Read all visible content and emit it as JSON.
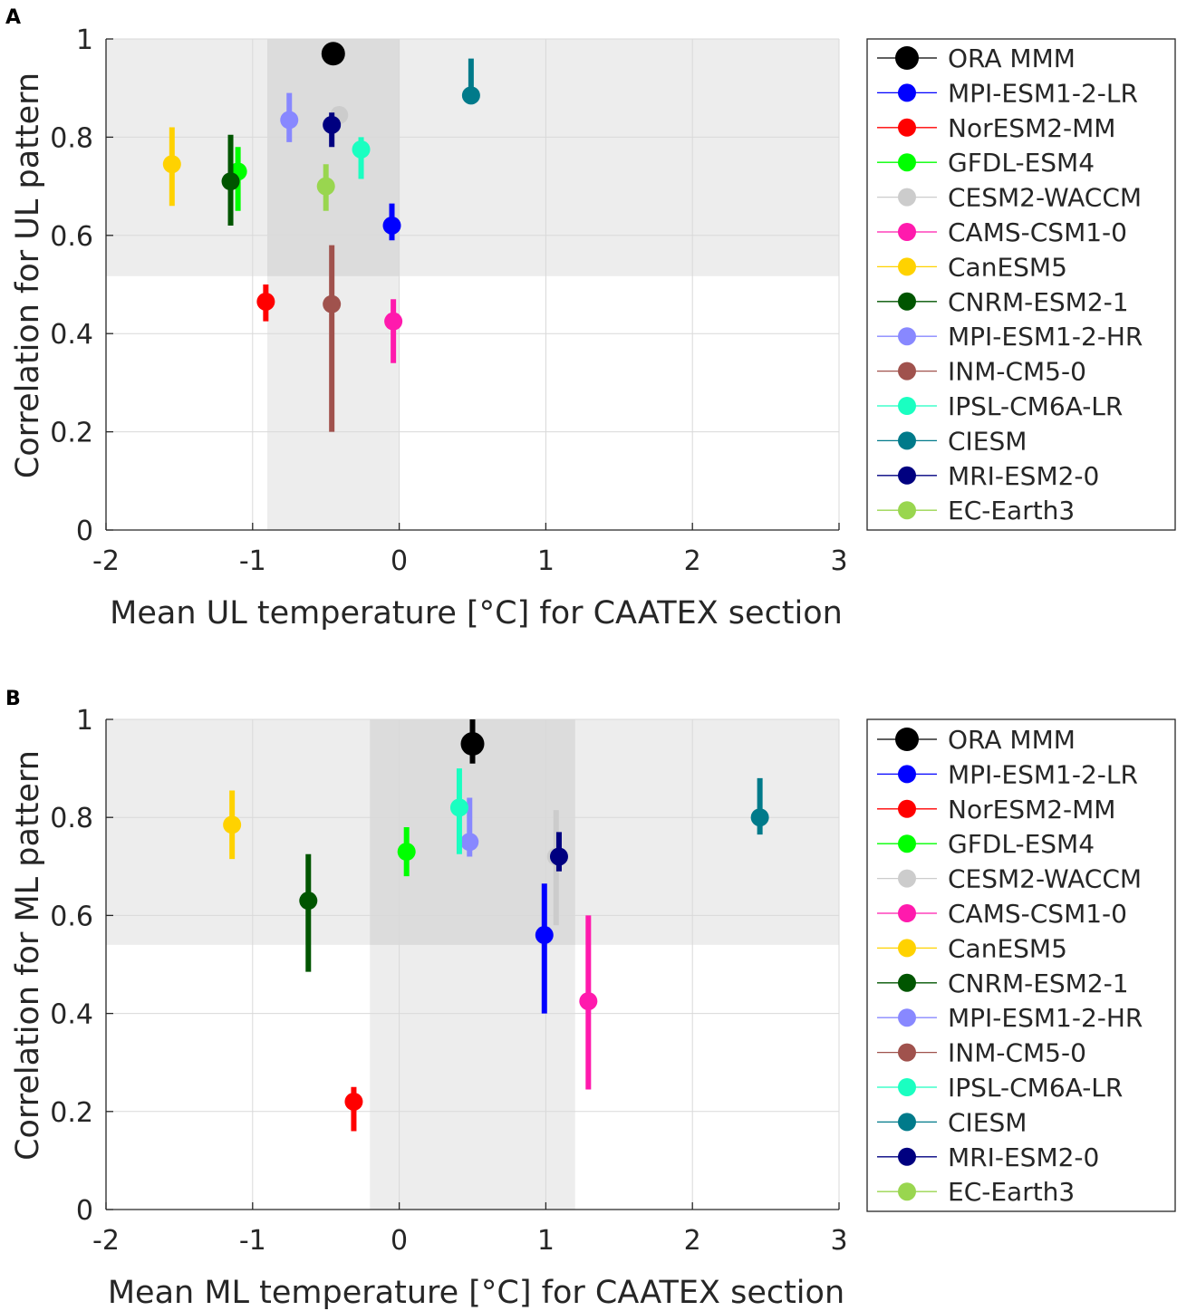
{
  "chart_data": [
    {
      "panel_label": "A",
      "type": "scatter",
      "xlabel": "Mean UL temperature [°C] for CAATEX section",
      "ylabel": "Correlation for UL pattern",
      "xlim": [
        -2,
        3
      ],
      "ylim": [
        0,
        1
      ],
      "xticks": [
        "-2",
        "-1",
        "0",
        "1",
        "2",
        "3"
      ],
      "yticks": [
        "0",
        "0.2",
        "0.4",
        "0.6",
        "0.8",
        "1"
      ],
      "grid": true,
      "legend_position": "outside-right",
      "shaded_regions": [
        {
          "orientation": "horizontal",
          "from": 0.517,
          "to": 1.0
        },
        {
          "orientation": "vertical",
          "from": -0.9,
          "to": 0.0
        }
      ],
      "series": [
        {
          "name": "ORA MMM",
          "color": "#000000",
          "x": -0.45,
          "y": 0.97,
          "err_low": 0.97,
          "err_high": 0.97
        },
        {
          "name": "MPI-ESM1-2-LR",
          "color": "#0000ff",
          "x": -0.05,
          "y": 0.62,
          "err_low": 0.59,
          "err_high": 0.665
        },
        {
          "name": "NorESM2-MM",
          "color": "#ff0000",
          "x": -0.91,
          "y": 0.465,
          "err_low": 0.425,
          "err_high": 0.5
        },
        {
          "name": "GFDL-ESM4",
          "color": "#00ff00",
          "x": -1.1,
          "y": 0.73,
          "err_low": 0.65,
          "err_high": 0.78
        },
        {
          "name": "CESM2-WACCM",
          "color": "#cccccc",
          "x": -0.41,
          "y": 0.845,
          "err_low": 0.845,
          "err_high": 0.845
        },
        {
          "name": "CAMS-CSM1-0",
          "color": "#ff1aad",
          "x": -0.04,
          "y": 0.425,
          "err_low": 0.34,
          "err_high": 0.47
        },
        {
          "name": "CanESM5",
          "color": "#ffd200",
          "x": -1.55,
          "y": 0.745,
          "err_low": 0.66,
          "err_high": 0.82
        },
        {
          "name": "CNRM-ESM2-1",
          "color": "#005500",
          "x": -1.15,
          "y": 0.71,
          "err_low": 0.62,
          "err_high": 0.805
        },
        {
          "name": "MPI-ESM1-2-HR",
          "color": "#8888ff",
          "x": -0.75,
          "y": 0.835,
          "err_low": 0.79,
          "err_high": 0.89
        },
        {
          "name": "INM-CM5-0",
          "color": "#a0524d",
          "x": -0.46,
          "y": 0.46,
          "err_low": 0.2,
          "err_high": 0.58
        },
        {
          "name": "IPSL-CM6A-LR",
          "color": "#1affc1",
          "x": -0.26,
          "y": 0.775,
          "err_low": 0.715,
          "err_high": 0.8
        },
        {
          "name": "CIESM",
          "color": "#007a8a",
          "x": 0.49,
          "y": 0.885,
          "err_low": 0.885,
          "err_high": 0.96
        },
        {
          "name": "MRI-ESM2-0",
          "color": "#000080",
          "x": -0.46,
          "y": 0.825,
          "err_low": 0.78,
          "err_high": 0.85
        },
        {
          "name": "EC-Earth3",
          "color": "#99d64f",
          "x": -0.5,
          "y": 0.7,
          "err_low": 0.65,
          "err_high": 0.745
        }
      ]
    },
    {
      "panel_label": "B",
      "type": "scatter",
      "xlabel": "Mean ML temperature [°C] for CAATEX section",
      "ylabel": "Correlation for ML pattern",
      "xlim": [
        -2,
        3
      ],
      "ylim": [
        0,
        1
      ],
      "xticks": [
        "-2",
        "-1",
        "0",
        "1",
        "2",
        "3"
      ],
      "yticks": [
        "0",
        "0.2",
        "0.4",
        "0.6",
        "0.8",
        "1"
      ],
      "grid": true,
      "legend_position": "outside-right",
      "shaded_regions": [
        {
          "orientation": "horizontal",
          "from": 0.54,
          "to": 1.0
        },
        {
          "orientation": "vertical",
          "from": -0.2,
          "to": 1.2
        }
      ],
      "series": [
        {
          "name": "ORA MMM",
          "color": "#000000",
          "x": 0.5,
          "y": 0.95,
          "err_low": 0.91,
          "err_high": 1.0
        },
        {
          "name": "MPI-ESM1-2-LR",
          "color": "#0000ff",
          "x": 0.99,
          "y": 0.56,
          "err_low": 0.4,
          "err_high": 0.665
        },
        {
          "name": "NorESM2-MM",
          "color": "#ff0000",
          "x": -0.31,
          "y": 0.22,
          "err_low": 0.16,
          "err_high": 0.25
        },
        {
          "name": "GFDL-ESM4",
          "color": "#00ff00",
          "x": 0.05,
          "y": 0.73,
          "err_low": 0.68,
          "err_high": 0.78
        },
        {
          "name": "CESM2-WACCM",
          "color": "#cccccc",
          "x": 1.07,
          "y": 0.72,
          "err_low": 0.58,
          "err_high": 0.815
        },
        {
          "name": "CAMS-CSM1-0",
          "color": "#ff1aad",
          "x": 1.29,
          "y": 0.425,
          "err_low": 0.245,
          "err_high": 0.6
        },
        {
          "name": "CanESM5",
          "color": "#ffd200",
          "x": -1.14,
          "y": 0.785,
          "err_low": 0.715,
          "err_high": 0.855
        },
        {
          "name": "CNRM-ESM2-1",
          "color": "#005500",
          "x": -0.62,
          "y": 0.63,
          "err_low": 0.485,
          "err_high": 0.725
        },
        {
          "name": "MPI-ESM1-2-HR",
          "color": "#8888ff",
          "x": 0.48,
          "y": 0.75,
          "err_low": 0.72,
          "err_high": 0.84
        },
        {
          "name": "INM-CM5-0",
          "color": "#a0524d",
          "x": null,
          "y": null,
          "err_low": null,
          "err_high": null
        },
        {
          "name": "IPSL-CM6A-LR",
          "color": "#1affc1",
          "x": 0.41,
          "y": 0.82,
          "err_low": 0.725,
          "err_high": 0.9
        },
        {
          "name": "CIESM",
          "color": "#007a8a",
          "x": 2.46,
          "y": 0.8,
          "err_low": 0.765,
          "err_high": 0.88
        },
        {
          "name": "MRI-ESM2-0",
          "color": "#000080",
          "x": 1.09,
          "y": 0.72,
          "err_low": 0.69,
          "err_high": 0.77
        },
        {
          "name": "EC-Earth3",
          "color": "#99d64f",
          "x": null,
          "y": null,
          "err_low": null,
          "err_high": null
        }
      ]
    }
  ]
}
